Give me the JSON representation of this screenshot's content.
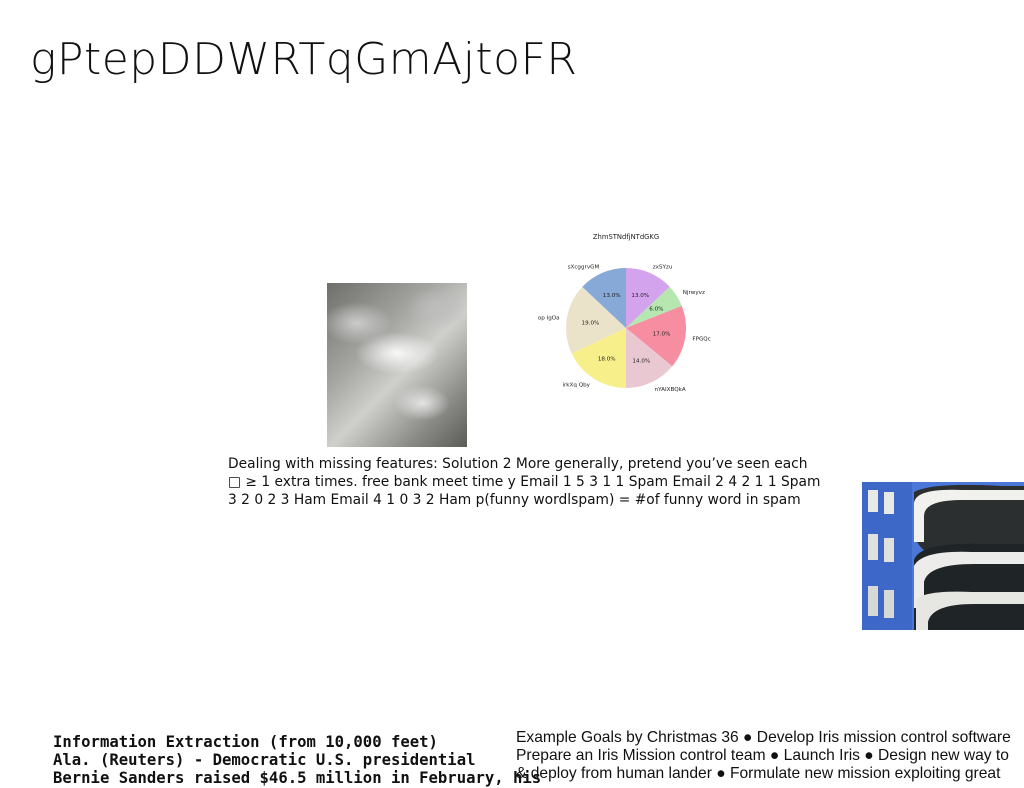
{
  "title": "gPtepDDWRTqGmAjtoFR",
  "paragraph": {
    "line1": "Dealing with missing features: Solution 2 More generally, pretend you’ve seen each",
    "line2": "□ ≥ 1 extra times. free bank meet time y Email 1 5 3 1 1 Spam Email 2 4 2 1 1 Spam",
    "line3": "3 2 0 2 3 Ham Email 4 1 0 3 2 Ham p(funny wordlspam) = #of funny word in spam"
  },
  "footer_left": {
    "line1": "Information Extraction (from 10,000 feet)",
    "line2": "Ala. (Reuters) - Democratic U.S. presidential",
    "line3": "Bernie Sanders raised $46.5 million in February, his"
  },
  "footer_right": {
    "line1": "Example Goals by Christmas 36 ● Develop Iris mission control software",
    "line2": "Prepare an Iris Mission control team ● Launch Iris ● Design new way to",
    "line3": "& deploy from human lander ● Formulate new mission exploiting great"
  },
  "chart_data": {
    "type": "pie",
    "title": "ZhmSTNdfjNTdGKG",
    "labels": [
      "zxSYzu",
      "Njrwyvz",
      "FPGQc",
      "nYAIXBQkA",
      "irkXq Qby",
      "op IgOa",
      "sXcggrvGM"
    ],
    "values": [
      13.0,
      6.0,
      17.0,
      14.0,
      18.0,
      19.0,
      13.0
    ],
    "value_labels": [
      "13.0%",
      "6.0%",
      "17.0%",
      "14.0%",
      "18.0%",
      "19.0%",
      "13.0%"
    ],
    "colors": [
      "#d4a3ee",
      "#b6e7b0",
      "#f78da0",
      "#e9c8d2",
      "#f7f08a",
      "#ebe3c9",
      "#86a9d8"
    ],
    "start_angle_deg": 90,
    "direction": "clockwise",
    "legend": "none"
  }
}
